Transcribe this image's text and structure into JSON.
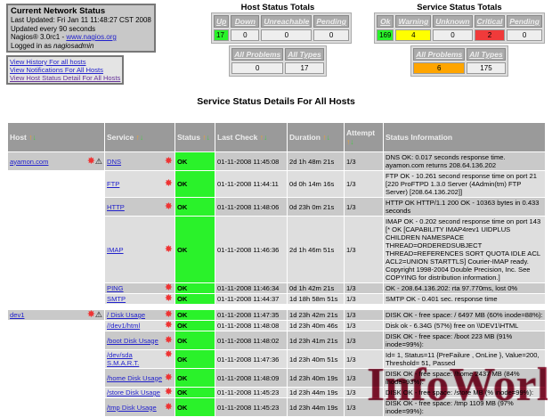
{
  "header": {
    "title": "Current Network Status",
    "last_updated": "Last Updated: Fri Jan 11 11:48:27 CST 2008",
    "interval": "Updated every 90 seconds",
    "version_prefix": "Nagios® 3.0rc1 - ",
    "version_link": "www.nagios.org",
    "logged_prefix": "Logged in as ",
    "user": "nagiosadmin"
  },
  "links": [
    "View History For all hosts",
    "View Notifications For All Hosts",
    "View Host Status Detail For All Hosts"
  ],
  "host_totals": {
    "title": "Host Status Totals",
    "headers": [
      "Up",
      "Down",
      "Unreachable",
      "Pending"
    ],
    "values": [
      "17",
      "0",
      "0",
      "0"
    ],
    "sum_headers": [
      "All Problems",
      "All Types"
    ],
    "sums": [
      "0",
      "17"
    ]
  },
  "service_totals": {
    "title": "Service Status Totals",
    "headers": [
      "Ok",
      "Warning",
      "Unknown",
      "Critical",
      "Pending"
    ],
    "values": [
      "169",
      "4",
      "0",
      "2",
      "0"
    ],
    "sum_headers": [
      "All Problems",
      "All Types"
    ],
    "sums": [
      "6",
      "175"
    ]
  },
  "colors": {
    "ok": "#2af22a",
    "warning": "#ffff00",
    "critical": "#f03a3a",
    "problems": "#ffa500"
  },
  "section_title": "Service Status Details For All Hosts",
  "columns": [
    "Host",
    "Service",
    "Status",
    "Last Check",
    "Duration",
    "Attempt",
    "Status Information"
  ],
  "hosts": [
    {
      "name": "ayamon.com",
      "services": [
        [
          "DNS",
          "OK",
          "01-11-2008 11:45:08",
          "2d 1h 48m 21s",
          "1/3",
          "DNS OK: 0.017 seconds response time. ayamon.com returns 208.64.136.202"
        ],
        [
          "FTP",
          "OK",
          "01-11-2008 11:44:11",
          "0d 0h 14m 16s",
          "1/3",
          "FTP OK - 10.261 second response time on port 21 [220 ProFTPD 1.3.0 Server (4Admin(tm) FTP Server) [208.64.136.202]]"
        ],
        [
          "HTTP",
          "OK",
          "01-11-2008 11:48:06",
          "0d 23h 0m 21s",
          "1/3",
          "HTTP OK HTTP/1.1 200 OK - 10363 bytes in 0.433 seconds"
        ],
        [
          "IMAP",
          "OK",
          "01-11-2008 11:46:36",
          "2d 1h 46m 51s",
          "1/3",
          "IMAP OK - 0.202 second response time on port 143 [* OK [CAPABILITY IMAP4rev1 UIDPLUS CHILDREN NAMESPACE THREAD=ORDEREDSUBJECT THREAD=REFERENCES SORT QUOTA IDLE ACL ACL2=UNION STARTTLS] Courier-IMAP ready. Copyright 1998-2004 Double Precision, Inc. See COPYING for distribution information.]"
        ],
        [
          "PING",
          "OK",
          "01-11-2008 11:46:34",
          "0d 1h 42m 21s",
          "1/3",
          "OK - 208.64.136.202: rta 97.770ms, lost 0%"
        ],
        [
          "SMTP",
          "OK",
          "01-11-2008 11:44:37",
          "1d 18h 58m 51s",
          "1/3",
          "SMTP OK - 0.401 sec. response time"
        ]
      ]
    },
    {
      "name": "dev1",
      "services": [
        [
          "/ Disk Usage",
          "OK",
          "01-11-2008 11:47:35",
          "1d 23h 42m 21s",
          "1/3",
          "DISK OK - free space: / 6497 MB (60% inode=88%):"
        ],
        [
          "//dev1/html",
          "OK",
          "01-11-2008 11:48:08",
          "1d 23h 40m 46s",
          "1/3",
          "Disk ok - 6.34G (57%) free on \\\\DEV1\\HTML"
        ],
        [
          "/boot Disk Usage",
          "OK",
          "01-11-2008 11:48:02",
          "1d 23h 41m 21s",
          "1/3",
          "DISK OK - free space: /boot 223 MB (91% inode=99%):"
        ],
        [
          "/dev/sda S.M.A.R.T.",
          "OK",
          "01-11-2008 11:47:36",
          "1d 23h 40m 51s",
          "1/3",
          "Id= 1, Status=11 {PreFailure , OnLine }, Value=200, Threshold= 51, Passed"
        ],
        [
          "/home Disk Usage",
          "OK",
          "01-11-2008 11:48:09",
          "1d 23h 40m 19s",
          "1/3",
          "DISK OK - free space: /home 2437 MB (84% inode=93%):"
        ],
        [
          "/store Disk Usage",
          "OK",
          "01-11-2008 11:45:23",
          "1d 23h 44m 19s",
          "1/3",
          "DISK OK - free space: /store MB (% inode=99%):"
        ],
        [
          "/tmp Disk Usage",
          "OK",
          "01-11-2008 11:45:23",
          "1d 23h 44m 19s",
          "1/3",
          "DISK OK - free space: /tmp 1109 MB (97% inode=99%):"
        ]
      ]
    }
  ],
  "watermark": "InfoWorld"
}
